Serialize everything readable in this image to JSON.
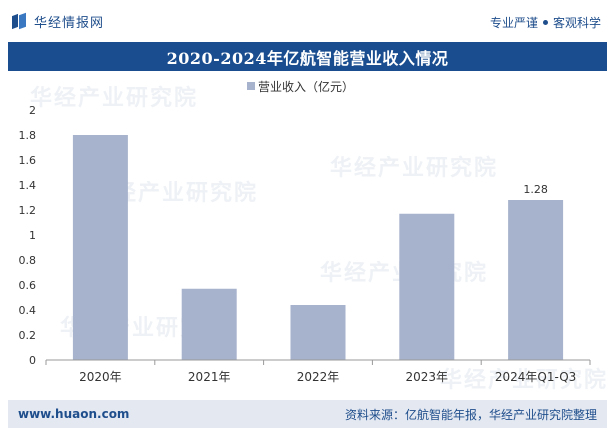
{
  "header": {
    "brand": "华经情报网",
    "slogan_left": "专业严谨",
    "slogan_right": "客观科学"
  },
  "title": "2020-2024年亿航智能营业收入情况",
  "colors": {
    "bar": "#a7b2cc",
    "title_bg": "#1a4d8f",
    "brand": "#1f4e8c",
    "footer_bg": "#e3e8f1"
  },
  "chart_data": {
    "type": "bar",
    "categories": [
      "2020年",
      "2021年",
      "2022年",
      "2023年",
      "2024年Q1-Q3"
    ],
    "series": [
      {
        "name": "营业收入（亿元）",
        "values": [
          1.8,
          0.57,
          0.44,
          1.17,
          1.28
        ]
      }
    ],
    "data_labels": [
      null,
      null,
      null,
      null,
      "1.28"
    ],
    "ylim": [
      0,
      2
    ],
    "yticks": [
      "0",
      "0.2",
      "0.4",
      "0.6",
      "0.8",
      "1",
      "1.2",
      "1.4",
      "1.6",
      "1.8",
      "2"
    ],
    "legend_position": "top",
    "grid": false
  },
  "footer": {
    "site": "www.huaon.com",
    "source": "资料来源：亿航智能年报，华经产业研究院整理"
  },
  "watermark": {
    "text": "华经产业研究院",
    "url": "www.huaon.com"
  }
}
